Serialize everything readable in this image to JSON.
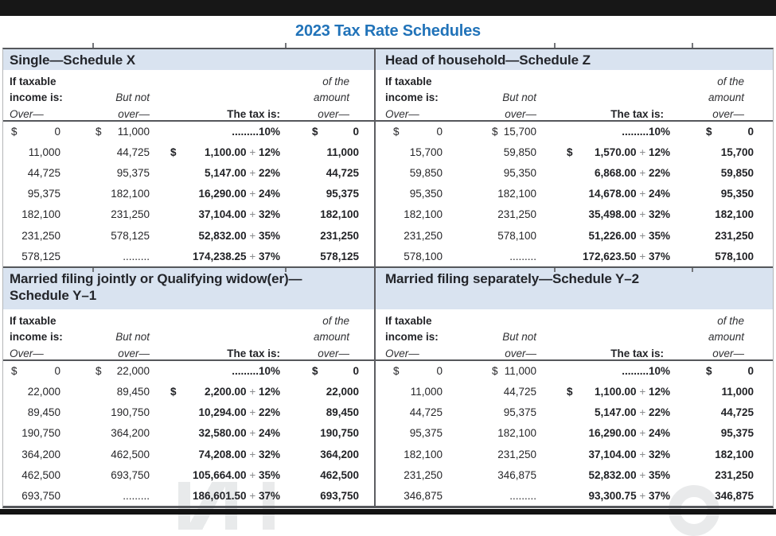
{
  "page": {
    "title": "2023 Tax Rate Schedules"
  },
  "colors": {
    "title_blue": "#2173b9",
    "band_blue": "#d9e3f0",
    "rule_dark": "#55575b",
    "text_dark": "#232428",
    "plus_gray": "#8a8c8e"
  },
  "column_headers": {
    "if_taxable": "If taxable",
    "income_is": "income is:",
    "over_left": "Over—",
    "but_not": "But not",
    "over_mid": "over—",
    "tax_is": "The tax is:",
    "of_the": "of the",
    "amount": "amount",
    "over_right": "over—"
  },
  "schedules": [
    {
      "name": "single",
      "title_line1": "Single—Schedule X",
      "title_line2": "",
      "rows": [
        {
          "over_sign": "$",
          "over": "0",
          "butnot_sign": "$",
          "butnot": "11,000",
          "tax_sign": "",
          "tax_amount": ".........",
          "tax_plus": "",
          "tax_rate": "10%",
          "amt_sign": "$",
          "amt": "0"
        },
        {
          "over_sign": "",
          "over": "11,000",
          "butnot_sign": "",
          "butnot": "44,725",
          "tax_sign": "$",
          "tax_amount": "1,100.00",
          "tax_plus": " + ",
          "tax_rate": "12%",
          "amt_sign": "",
          "amt": "11,000"
        },
        {
          "over_sign": "",
          "over": "44,725",
          "butnot_sign": "",
          "butnot": "95,375",
          "tax_sign": "",
          "tax_amount": "5,147.00",
          "tax_plus": " + ",
          "tax_rate": "22%",
          "amt_sign": "",
          "amt": "44,725"
        },
        {
          "over_sign": "",
          "over": "95,375",
          "butnot_sign": "",
          "butnot": "182,100",
          "tax_sign": "",
          "tax_amount": "16,290.00",
          "tax_plus": " + ",
          "tax_rate": "24%",
          "amt_sign": "",
          "amt": "95,375"
        },
        {
          "over_sign": "",
          "over": "182,100",
          "butnot_sign": "",
          "butnot": "231,250",
          "tax_sign": "",
          "tax_amount": "37,104.00",
          "tax_plus": " + ",
          "tax_rate": "32%",
          "amt_sign": "",
          "amt": "182,100"
        },
        {
          "over_sign": "",
          "over": "231,250",
          "butnot_sign": "",
          "butnot": "578,125",
          "tax_sign": "",
          "tax_amount": "52,832.00",
          "tax_plus": " + ",
          "tax_rate": "35%",
          "amt_sign": "",
          "amt": "231,250"
        },
        {
          "over_sign": "",
          "over": "578,125",
          "butnot_sign": "",
          "butnot": ".........",
          "tax_sign": "",
          "tax_amount": "174,238.25",
          "tax_plus": " + ",
          "tax_rate": "37%",
          "amt_sign": "",
          "amt": "578,125"
        }
      ]
    },
    {
      "name": "head-of-household",
      "title_line1": "Head of household—Schedule Z",
      "title_line2": "",
      "rows": [
        {
          "over_sign": "$",
          "over": "0",
          "butnot_sign": "$",
          "butnot": "15,700",
          "tax_sign": "",
          "tax_amount": ".........",
          "tax_plus": "",
          "tax_rate": "10%",
          "amt_sign": "$",
          "amt": "0"
        },
        {
          "over_sign": "",
          "over": "15,700",
          "butnot_sign": "",
          "butnot": "59,850",
          "tax_sign": "$",
          "tax_amount": "1,570.00",
          "tax_plus": " + ",
          "tax_rate": "12%",
          "amt_sign": "",
          "amt": "15,700"
        },
        {
          "over_sign": "",
          "over": "59,850",
          "butnot_sign": "",
          "butnot": "95,350",
          "tax_sign": "",
          "tax_amount": "6,868.00",
          "tax_plus": " + ",
          "tax_rate": "22%",
          "amt_sign": "",
          "amt": "59,850"
        },
        {
          "over_sign": "",
          "over": "95,350",
          "butnot_sign": "",
          "butnot": "182,100",
          "tax_sign": "",
          "tax_amount": "14,678.00",
          "tax_plus": " + ",
          "tax_rate": "24%",
          "amt_sign": "",
          "amt": "95,350"
        },
        {
          "over_sign": "",
          "over": "182,100",
          "butnot_sign": "",
          "butnot": "231,250",
          "tax_sign": "",
          "tax_amount": "35,498.00",
          "tax_plus": " + ",
          "tax_rate": "32%",
          "amt_sign": "",
          "amt": "182,100"
        },
        {
          "over_sign": "",
          "over": "231,250",
          "butnot_sign": "",
          "butnot": "578,100",
          "tax_sign": "",
          "tax_amount": "51,226.00",
          "tax_plus": " + ",
          "tax_rate": "35%",
          "amt_sign": "",
          "amt": "231,250"
        },
        {
          "over_sign": "",
          "over": "578,100",
          "butnot_sign": "",
          "butnot": ".........",
          "tax_sign": "",
          "tax_amount": "172,623.50",
          "tax_plus": " + ",
          "tax_rate": "37%",
          "amt_sign": "",
          "amt": "578,100"
        }
      ]
    },
    {
      "name": "married-filing-jointly",
      "title_line1": "Married filing jointly or Qualifying widow(er)—",
      "title_line2": "Schedule Y–1",
      "rows": [
        {
          "over_sign": "$",
          "over": "0",
          "butnot_sign": "$",
          "butnot": "22,000",
          "tax_sign": "",
          "tax_amount": ".........",
          "tax_plus": "",
          "tax_rate": "10%",
          "amt_sign": "$",
          "amt": "0"
        },
        {
          "over_sign": "",
          "over": "22,000",
          "butnot_sign": "",
          "butnot": "89,450",
          "tax_sign": "$",
          "tax_amount": "2,200.00",
          "tax_plus": " + ",
          "tax_rate": "12%",
          "amt_sign": "",
          "amt": "22,000"
        },
        {
          "over_sign": "",
          "over": "89,450",
          "butnot_sign": "",
          "butnot": "190,750",
          "tax_sign": "",
          "tax_amount": "10,294.00",
          "tax_plus": " + ",
          "tax_rate": "22%",
          "amt_sign": "",
          "amt": "89,450"
        },
        {
          "over_sign": "",
          "over": "190,750",
          "butnot_sign": "",
          "butnot": "364,200",
          "tax_sign": "",
          "tax_amount": "32,580.00",
          "tax_plus": " + ",
          "tax_rate": "24%",
          "amt_sign": "",
          "amt": "190,750"
        },
        {
          "over_sign": "",
          "over": "364,200",
          "butnot_sign": "",
          "butnot": "462,500",
          "tax_sign": "",
          "tax_amount": "74,208.00",
          "tax_plus": " + ",
          "tax_rate": "32%",
          "amt_sign": "",
          "amt": "364,200"
        },
        {
          "over_sign": "",
          "over": "462,500",
          "butnot_sign": "",
          "butnot": "693,750",
          "tax_sign": "",
          "tax_amount": "105,664.00",
          "tax_plus": " + ",
          "tax_rate": "35%",
          "amt_sign": "",
          "amt": "462,500"
        },
        {
          "over_sign": "",
          "over": "693,750",
          "butnot_sign": "",
          "butnot": ".........",
          "tax_sign": "",
          "tax_amount": "186,601.50",
          "tax_plus": " + ",
          "tax_rate": "37%",
          "amt_sign": "",
          "amt": "693,750"
        }
      ]
    },
    {
      "name": "married-filing-separately",
      "title_line1": "Married filing separately—Schedule Y–2",
      "title_line2": "",
      "rows": [
        {
          "over_sign": "$",
          "over": "0",
          "butnot_sign": "$",
          "butnot": "11,000",
          "tax_sign": "",
          "tax_amount": ".........",
          "tax_plus": "",
          "tax_rate": "10%",
          "amt_sign": "$",
          "amt": "0"
        },
        {
          "over_sign": "",
          "over": "11,000",
          "butnot_sign": "",
          "butnot": "44,725",
          "tax_sign": "$",
          "tax_amount": "1,100.00",
          "tax_plus": " + ",
          "tax_rate": "12%",
          "amt_sign": "",
          "amt": "11,000"
        },
        {
          "over_sign": "",
          "over": "44,725",
          "butnot_sign": "",
          "butnot": "95,375",
          "tax_sign": "",
          "tax_amount": "5,147.00",
          "tax_plus": " + ",
          "tax_rate": "22%",
          "amt_sign": "",
          "amt": "44,725"
        },
        {
          "over_sign": "",
          "over": "95,375",
          "butnot_sign": "",
          "butnot": "182,100",
          "tax_sign": "",
          "tax_amount": "16,290.00",
          "tax_plus": " + ",
          "tax_rate": "24%",
          "amt_sign": "",
          "amt": "95,375"
        },
        {
          "over_sign": "",
          "over": "182,100",
          "butnot_sign": "",
          "butnot": "231,250",
          "tax_sign": "",
          "tax_amount": "37,104.00",
          "tax_plus": " + ",
          "tax_rate": "32%",
          "amt_sign": "",
          "amt": "182,100"
        },
        {
          "over_sign": "",
          "over": "231,250",
          "butnot_sign": "",
          "butnot": "346,875",
          "tax_sign": "",
          "tax_amount": "52,832.00",
          "tax_plus": " + ",
          "tax_rate": "35%",
          "amt_sign": "",
          "amt": "231,250"
        },
        {
          "over_sign": "",
          "over": "346,875",
          "butnot_sign": "",
          "butnot": ".........",
          "tax_sign": "",
          "tax_amount": "93,300.75",
          "tax_plus": " + ",
          "tax_rate": "37%",
          "amt_sign": "",
          "amt": "346,875"
        }
      ]
    }
  ]
}
